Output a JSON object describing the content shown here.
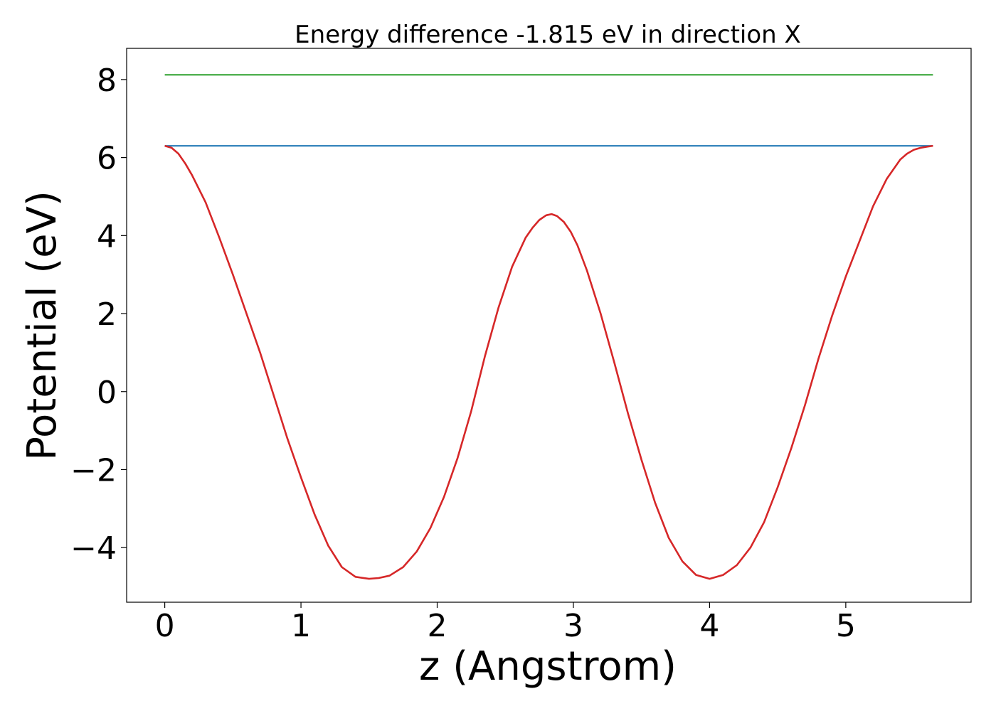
{
  "chart_data": {
    "type": "line",
    "title": "Energy difference -1.815 eV in direction X",
    "xlabel": "z (Angstrom)",
    "ylabel": "Potential (eV)",
    "xlim": [
      -0.28,
      5.92
    ],
    "ylim": [
      -5.4,
      8.8
    ],
    "xticks": [
      0,
      1,
      2,
      3,
      4,
      5
    ],
    "xtick_labels": [
      "0",
      "1",
      "2",
      "3",
      "4",
      "5"
    ],
    "yticks": [
      8,
      6,
      4,
      2,
      0,
      -2,
      -4
    ],
    "ytick_labels": [
      "8",
      "6",
      "4",
      "2",
      "0",
      "−2",
      "−4"
    ],
    "grid": false,
    "series": [
      {
        "color": "#2ca02c",
        "x": [
          0.0,
          5.64
        ],
        "y": [
          8.12,
          8.12
        ]
      },
      {
        "color": "#1f77b4",
        "x": [
          0.0,
          5.64
        ],
        "y": [
          6.3,
          6.3
        ]
      },
      {
        "color": "#d62728",
        "x": [
          0.0,
          0.05,
          0.1,
          0.15,
          0.2,
          0.3,
          0.4,
          0.5,
          0.6,
          0.7,
          0.8,
          0.9,
          1.0,
          1.1,
          1.2,
          1.3,
          1.4,
          1.5,
          1.57,
          1.65,
          1.75,
          1.85,
          1.95,
          2.05,
          2.15,
          2.25,
          2.35,
          2.45,
          2.55,
          2.65,
          2.7,
          2.75,
          2.8,
          2.84,
          2.88,
          2.93,
          2.98,
          3.03,
          3.1,
          3.2,
          3.3,
          3.4,
          3.5,
          3.6,
          3.7,
          3.8,
          3.9,
          4.0,
          4.1,
          4.2,
          4.3,
          4.4,
          4.5,
          4.6,
          4.7,
          4.8,
          4.9,
          5.0,
          5.1,
          5.2,
          5.3,
          5.4,
          5.45,
          5.5,
          5.55,
          5.6,
          5.64
        ],
        "y": [
          6.3,
          6.25,
          6.1,
          5.85,
          5.55,
          4.85,
          3.95,
          3.0,
          2.0,
          1.0,
          -0.1,
          -1.2,
          -2.2,
          -3.15,
          -3.95,
          -4.5,
          -4.75,
          -4.8,
          -4.78,
          -4.72,
          -4.5,
          -4.1,
          -3.5,
          -2.7,
          -1.7,
          -0.5,
          0.9,
          2.15,
          3.2,
          3.95,
          4.2,
          4.4,
          4.52,
          4.55,
          4.5,
          4.35,
          4.1,
          3.75,
          3.1,
          2.0,
          0.75,
          -0.55,
          -1.75,
          -2.85,
          -3.75,
          -4.35,
          -4.7,
          -4.8,
          -4.7,
          -4.45,
          -4.0,
          -3.35,
          -2.45,
          -1.45,
          -0.35,
          0.85,
          1.95,
          2.95,
          3.85,
          4.75,
          5.45,
          5.95,
          6.1,
          6.2,
          6.25,
          6.28,
          6.3
        ]
      }
    ]
  }
}
